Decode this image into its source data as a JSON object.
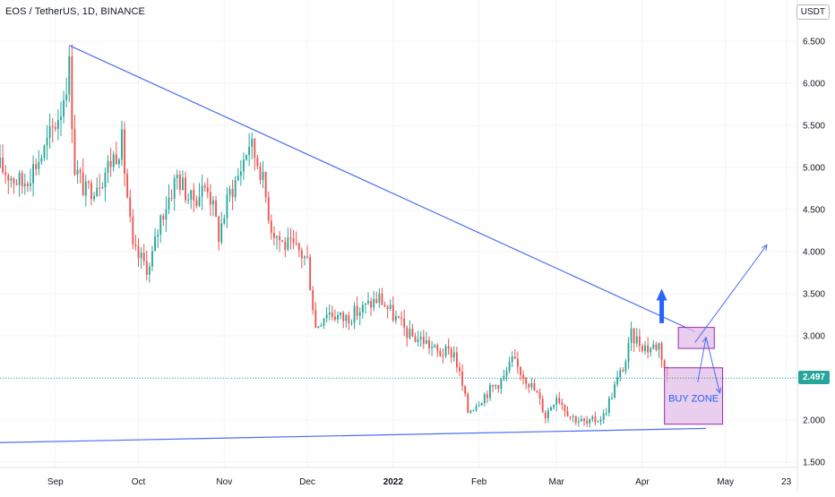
{
  "header": {
    "title": "EOS / TetherUS, 1D, BINANCE",
    "currency": "USDT",
    "last_price": "2.497"
  },
  "colors": {
    "up": "#26a69a",
    "down": "#ef5350",
    "trendline": "#4c6ef5",
    "zone_fill": "#e1bee7",
    "zone_stroke": "#9c27b0",
    "grid": "#f0f3fa",
    "arrow": "#2962ff"
  },
  "chart_data": {
    "type": "candlestick",
    "title": "EOS / TetherUS, 1D, BINANCE",
    "y_axis": {
      "ticks": [
        "1.500",
        "2.000",
        "2.500",
        "3.000",
        "3.500",
        "4.000",
        "4.500",
        "5.000",
        "5.500",
        "6.000",
        "6.500"
      ],
      "range": [
        1.43,
        6.72
      ]
    },
    "x_axis": {
      "ticks": [
        {
          "label": "Sep",
          "date": "2021-09-01"
        },
        {
          "label": "Oct",
          "date": "2021-10-01"
        },
        {
          "label": "Nov",
          "date": "2021-11-01"
        },
        {
          "label": "Dec",
          "date": "2021-12-01"
        },
        {
          "label": "2022",
          "date": "2022-01-01"
        },
        {
          "label": "Feb",
          "date": "2022-02-01"
        },
        {
          "label": "Mar",
          "date": "2022-03-01"
        },
        {
          "label": "Apr",
          "date": "2022-04-01"
        },
        {
          "label": "May",
          "date": "2022-05-01"
        },
        {
          "label": "23",
          "date": "2022-05-23"
        }
      ],
      "range": [
        "2021-08-12",
        "2022-05-27"
      ]
    },
    "price_path": [
      [
        "2021-08-12",
        5.0
      ],
      [
        "2021-08-20",
        4.8
      ],
      [
        "2021-08-28",
        5.2
      ],
      [
        "2021-09-03",
        5.7
      ],
      [
        "2021-09-06",
        6.2
      ],
      [
        "2021-09-08",
        5.0
      ],
      [
        "2021-09-12",
        4.7
      ],
      [
        "2021-09-18",
        4.9
      ],
      [
        "2021-09-25",
        5.3
      ],
      [
        "2021-09-29",
        4.0
      ],
      [
        "2021-10-05",
        3.8
      ],
      [
        "2021-10-09",
        4.4
      ],
      [
        "2021-10-15",
        4.9
      ],
      [
        "2021-10-20",
        4.6
      ],
      [
        "2021-10-26",
        4.8
      ],
      [
        "2021-10-30",
        4.2
      ],
      [
        "2021-11-03",
        4.7
      ],
      [
        "2021-11-06",
        4.9
      ],
      [
        "2021-11-10",
        5.3
      ],
      [
        "2021-11-14",
        5.0
      ],
      [
        "2021-11-18",
        4.3
      ],
      [
        "2021-11-22",
        4.1
      ],
      [
        "2021-11-28",
        4.0
      ],
      [
        "2021-12-01",
        3.9
      ],
      [
        "2021-12-04",
        3.1
      ],
      [
        "2021-12-08",
        3.3
      ],
      [
        "2021-12-14",
        3.2
      ],
      [
        "2021-12-20",
        3.3
      ],
      [
        "2021-12-27",
        3.45
      ],
      [
        "2022-01-02",
        3.2
      ],
      [
        "2022-01-07",
        3.0
      ],
      [
        "2022-01-12",
        2.95
      ],
      [
        "2022-01-17",
        2.8
      ],
      [
        "2022-01-23",
        2.8
      ],
      [
        "2022-01-26",
        2.4
      ],
      [
        "2022-01-28",
        2.1
      ],
      [
        "2022-02-03",
        2.3
      ],
      [
        "2022-02-10",
        2.5
      ],
      [
        "2022-02-13",
        2.7
      ],
      [
        "2022-02-18",
        2.5
      ],
      [
        "2022-02-22",
        2.3
      ],
      [
        "2022-02-25",
        2.05
      ],
      [
        "2022-03-01",
        2.3
      ],
      [
        "2022-03-06",
        2.05
      ],
      [
        "2022-03-12",
        1.95
      ],
      [
        "2022-03-18",
        2.05
      ],
      [
        "2022-03-22",
        2.4
      ],
      [
        "2022-03-26",
        2.7
      ],
      [
        "2022-03-28",
        3.0
      ],
      [
        "2022-04-03",
        2.85
      ],
      [
        "2022-04-07",
        2.9
      ],
      [
        "2022-04-10",
        2.5
      ]
    ],
    "trendlines": [
      {
        "name": "resistance",
        "from": [
          "2021-09-06",
          6.45
        ],
        "to": [
          "2022-04-20",
          3.05
        ]
      },
      {
        "name": "support",
        "from": [
          "2021-08-10",
          1.73
        ],
        "to": [
          "2022-04-24",
          1.9
        ]
      }
    ],
    "zones": [
      {
        "label": "",
        "x": [
          "2022-04-14",
          "2022-04-27"
        ],
        "y": [
          2.85,
          3.1
        ]
      },
      {
        "label": "BUY ZONE",
        "x": [
          "2022-04-09",
          "2022-04-30"
        ],
        "y": [
          1.95,
          2.62
        ]
      }
    ],
    "annotations": {
      "buy_zone_label": "BUY ZONE"
    },
    "grid": true,
    "legend": "none"
  }
}
